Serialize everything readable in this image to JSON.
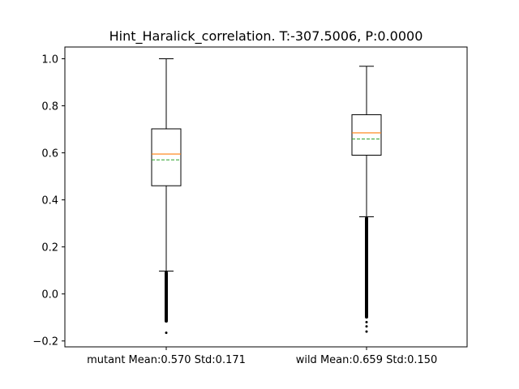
{
  "chart_data": {
    "type": "box",
    "title": "Hint_Haralick_correlation. T:-307.5006, P:0.0000",
    "xlabel": "",
    "ylabel": "",
    "ylim": [
      -0.225,
      1.05
    ],
    "yticks": [
      -0.2,
      0.0,
      0.2,
      0.4,
      0.6,
      0.8,
      1.0
    ],
    "ytick_labels": [
      "−0.2",
      "0.0",
      "0.2",
      "0.4",
      "0.6",
      "0.8",
      "1.0"
    ],
    "grid": false,
    "categories": [
      "mutant Mean:0.570 Std:0.171",
      "wild Mean:0.659 Std:0.150"
    ],
    "boxes": [
      {
        "category": "mutant Mean:0.570 Std:0.171",
        "whisker_low": 0.097,
        "q1": 0.46,
        "median": 0.595,
        "mean": 0.57,
        "q3": 0.702,
        "whisker_high": 1.0,
        "outlier_range": [
          -0.122,
          0.097
        ],
        "outliers_extra": [
          -0.165
        ]
      },
      {
        "category": "wild Mean:0.659 Std:0.150",
        "whisker_low": 0.328,
        "q1": 0.59,
        "median": 0.685,
        "mean": 0.659,
        "q3": 0.762,
        "whisker_high": 0.968,
        "outlier_range": [
          -0.105,
          0.328
        ],
        "outliers_extra": [
          -0.12,
          -0.138,
          -0.16
        ]
      }
    ],
    "colors": {
      "median": "#ff7f0e",
      "mean": "#2ca02c",
      "box": "#000000"
    }
  }
}
